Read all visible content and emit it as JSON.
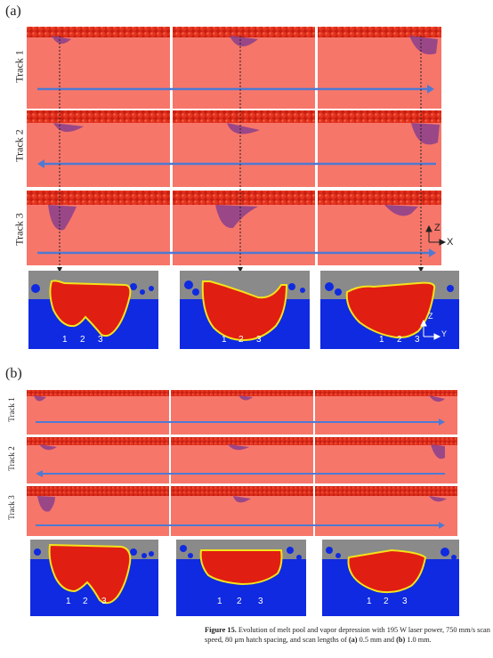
{
  "panel_a": {
    "label": "(a)",
    "tracks": [
      "Track 1",
      "Track 2",
      "Track 3"
    ],
    "axes_3d": {
      "z": "Z",
      "x": "X"
    },
    "pool_labels": [
      "1",
      "2",
      "3"
    ],
    "axes_2d": {
      "z": "Z",
      "y": "Y"
    }
  },
  "panel_b": {
    "label": "(b)",
    "tracks": [
      "Track 1",
      "Track 2",
      "Track 3"
    ],
    "pool_labels": [
      "1",
      "2",
      "3"
    ]
  },
  "caption": {
    "figure_label": "Figure 15.",
    "text_1": " Evolution of melt pool and vapor depression with 195 W laser power, 750 mm/s scan speed, 80 μm hatch spacing, and scan lengths of ",
    "part_a": "(a)",
    "text_2": " 0.5 mm and ",
    "part_b": "(b)",
    "text_3": " 1.0 mm."
  },
  "colors": {
    "substrate": "#f7766a",
    "powder": "#d8271a",
    "vapor": "#8a3f8c",
    "track_arrow": "#4f7ad3",
    "section_gas": "#8a8a8a",
    "section_solid": "#0f2ae0",
    "section_melt": "#e01e12"
  }
}
